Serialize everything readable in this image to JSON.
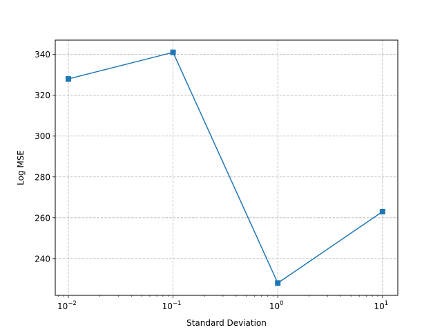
{
  "chart_data": {
    "type": "line",
    "title": "",
    "xlabel": "Standard Deviation",
    "ylabel": "Log MSE",
    "xscale": "log",
    "grid": true,
    "grid_style": "dashed",
    "marker": "square",
    "xlim": [
      0.0075,
      14
    ],
    "ylim": [
      222,
      347
    ],
    "x_ticks": [
      {
        "value": 0.01,
        "base": "10",
        "exp": "−2"
      },
      {
        "value": 0.1,
        "base": "10",
        "exp": "−1"
      },
      {
        "value": 1,
        "base": "10",
        "exp": "0"
      },
      {
        "value": 10,
        "base": "10",
        "exp": "1"
      }
    ],
    "y_ticks": [
      "240",
      "260",
      "280",
      "300",
      "320",
      "340"
    ],
    "series": [
      {
        "color": "#1f77b4",
        "points": [
          {
            "x": 0.01,
            "y": 328
          },
          {
            "x": 0.1,
            "y": 341
          },
          {
            "x": 1,
            "y": 228
          },
          {
            "x": 10,
            "y": 263
          }
        ]
      }
    ]
  }
}
